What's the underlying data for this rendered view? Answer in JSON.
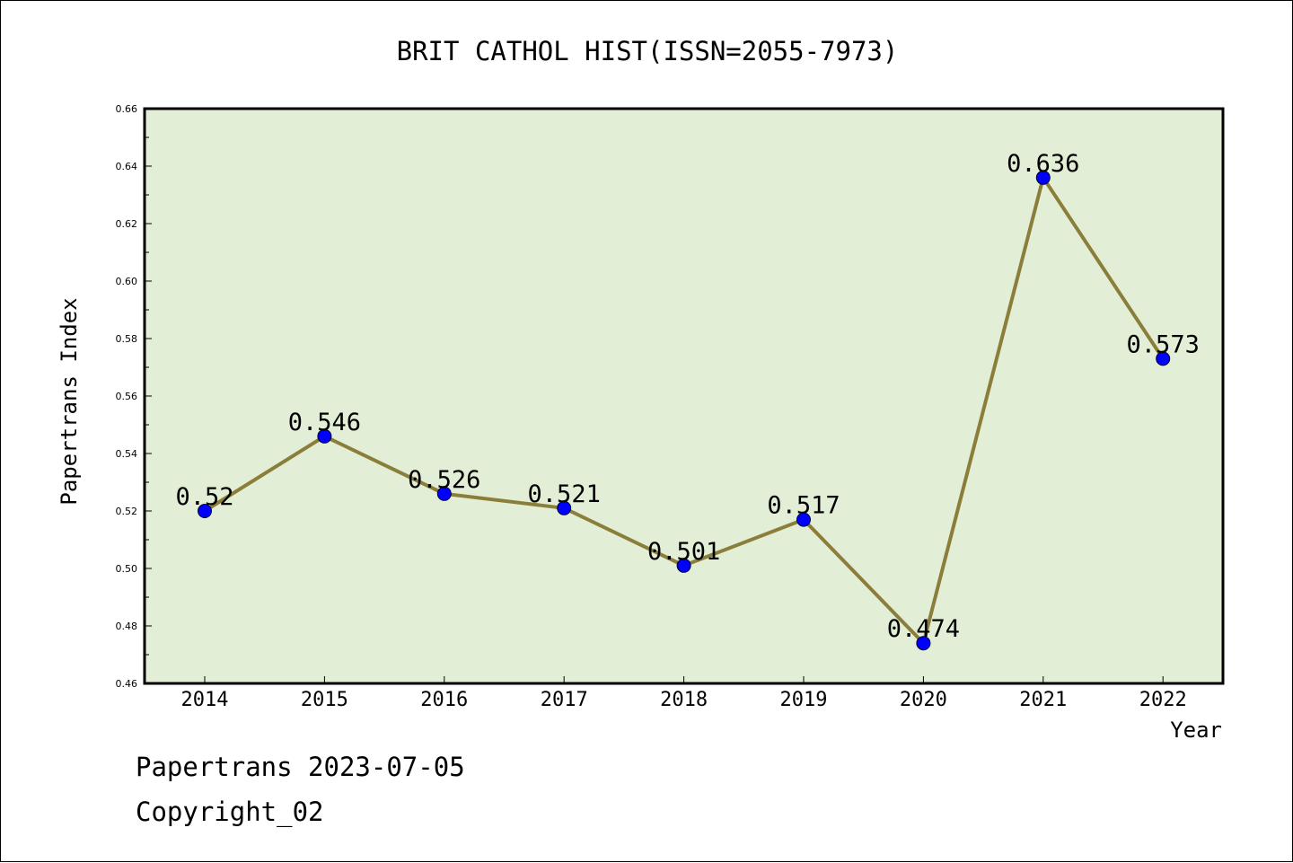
{
  "chart_data": {
    "type": "line",
    "title": "BRIT CATHOL HIST(ISSN=2055-7973)",
    "xlabel": "Year",
    "ylabel": "Papertrans Index",
    "categories": [
      "2014",
      "2015",
      "2016",
      "2017",
      "2018",
      "2019",
      "2020",
      "2021",
      "2022"
    ],
    "series": [
      {
        "name": "Papertrans Index",
        "values": [
          0.52,
          0.546,
          0.526,
          0.521,
          0.501,
          0.517,
          0.474,
          0.636,
          0.573
        ],
        "labels": [
          "0.52",
          "0.546",
          "0.526",
          "0.521",
          "0.501",
          "0.517",
          "0.474",
          "0.636",
          "0.573"
        ]
      }
    ],
    "ylim": [
      0.46,
      0.66
    ],
    "yticks": [
      0.46,
      0.48,
      0.5,
      0.52,
      0.54,
      0.56,
      0.58,
      0.6,
      0.62,
      0.64,
      0.66
    ],
    "ytick_labels": [
      "0.46",
      "0.48",
      "0.50",
      "0.52",
      "0.54",
      "0.56",
      "0.58",
      "0.60",
      "0.62",
      "0.64",
      "0.66"
    ],
    "grid": false,
    "colors": {
      "plot_background": "#e2efd6",
      "line": "#8b7d3a",
      "marker": "#0000ff"
    }
  },
  "footer": {
    "line1": "Papertrans 2023-07-05",
    "line2": "Copyright_02"
  }
}
